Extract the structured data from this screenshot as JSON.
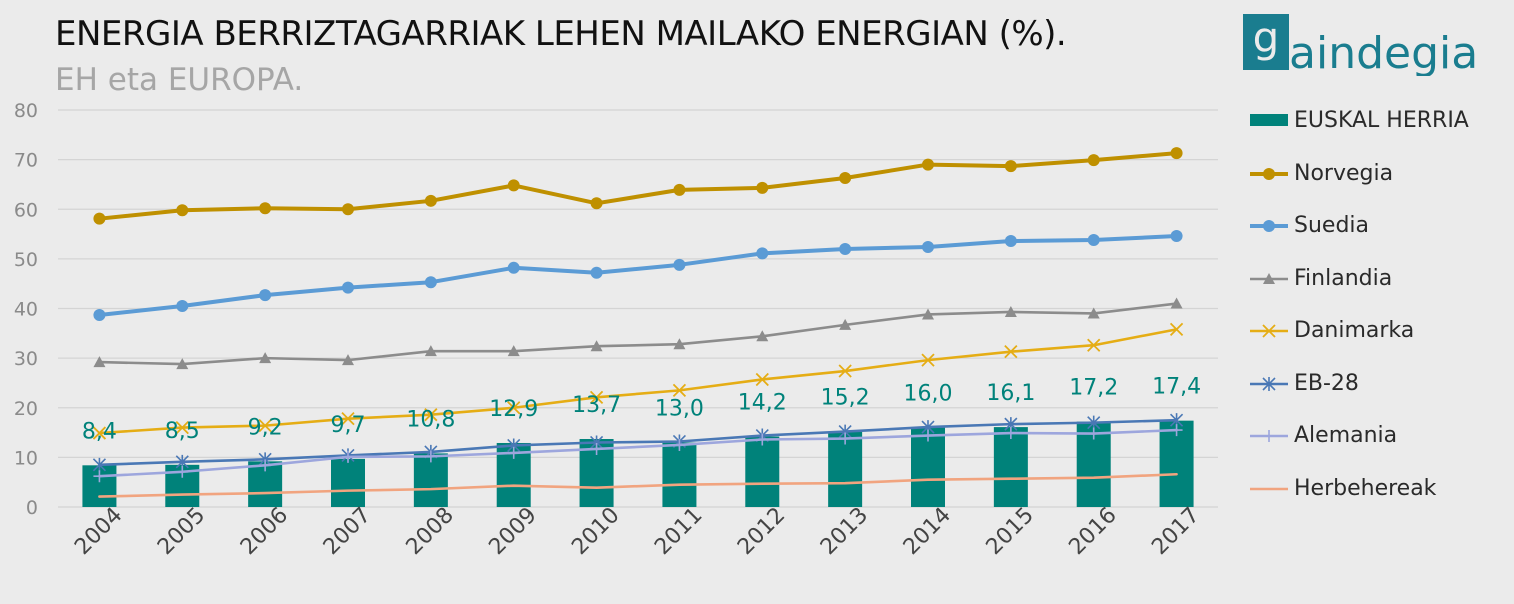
{
  "header": {
    "title": "ENERGIA BERRIZTAGARRIAK LEHEN MAILAKO ENERGIAN (%).",
    "subtitle": "EH eta EUROPA."
  },
  "logo": {
    "text": "gaindegia",
    "color": "#1a7d8f"
  },
  "chart_data": {
    "type": "bar",
    "categories": [
      "2004",
      "2005",
      "2006",
      "2007",
      "2008",
      "2009",
      "2010",
      "2011",
      "2012",
      "2013",
      "2014",
      "2015",
      "2016",
      "2017"
    ],
    "ylim": [
      0,
      80
    ],
    "yticks": [
      0,
      10,
      20,
      30,
      40,
      50,
      60,
      70,
      80
    ],
    "grid": true,
    "legend_position": "right",
    "bar_series": {
      "name": "EUSKAL HERRIA",
      "color": "#00827a",
      "values": [
        8.4,
        8.5,
        9.2,
        9.7,
        10.8,
        12.9,
        13.7,
        13.0,
        14.2,
        15.2,
        16.0,
        16.1,
        17.2,
        17.4
      ],
      "labels": [
        "8,4",
        "8,5",
        "9,2",
        "9,7",
        "10,8",
        "12,9",
        "13,7",
        "13,0",
        "14,2",
        "15,2",
        "16,0",
        "16,1",
        "17,2",
        "17,4"
      ]
    },
    "series": [
      {
        "name": "Norvegia",
        "color": "#bf9000",
        "marker": "circle",
        "values": [
          58.1,
          59.8,
          60.2,
          60.0,
          61.7,
          64.8,
          61.2,
          63.9,
          64.3,
          66.3,
          69.0,
          68.7,
          69.9,
          71.3
        ]
      },
      {
        "name": "Suedia",
        "color": "#5b9bd5",
        "marker": "circle",
        "values": [
          38.7,
          40.5,
          42.7,
          44.2,
          45.3,
          48.2,
          47.2,
          48.8,
          51.1,
          52.0,
          52.4,
          53.6,
          53.8,
          54.6
        ]
      },
      {
        "name": "Finlandia",
        "color": "#8c8c8c",
        "marker": "triangle",
        "values": [
          29.2,
          28.8,
          30.0,
          29.6,
          31.4,
          31.4,
          32.4,
          32.8,
          34.4,
          36.7,
          38.8,
          39.3,
          39.0,
          41.0
        ]
      },
      {
        "name": "Danimarka",
        "color": "#e5ad15",
        "marker": "x",
        "values": [
          14.9,
          16.0,
          16.4,
          17.8,
          18.6,
          20.0,
          22.1,
          23.5,
          25.7,
          27.4,
          29.6,
          31.3,
          32.6,
          35.8
        ]
      },
      {
        "name": "EB-28",
        "color": "#4a78b5",
        "marker": "star",
        "values": [
          8.5,
          9.1,
          9.6,
          10.4,
          11.1,
          12.4,
          13.0,
          13.2,
          14.4,
          15.2,
          16.1,
          16.7,
          17.0,
          17.5
        ]
      },
      {
        "name": "Alemania",
        "color": "#9da6dd",
        "marker": "plus",
        "values": [
          6.2,
          7.1,
          8.4,
          10.1,
          10.2,
          10.9,
          11.7,
          12.5,
          13.6,
          13.8,
          14.4,
          14.9,
          14.8,
          15.5
        ]
      },
      {
        "name": "Herbehereak",
        "color": "#f1a47f",
        "marker": "none",
        "values": [
          2.1,
          2.5,
          2.8,
          3.3,
          3.6,
          4.3,
          3.9,
          4.5,
          4.7,
          4.8,
          5.5,
          5.7,
          5.9,
          6.6
        ]
      }
    ]
  }
}
